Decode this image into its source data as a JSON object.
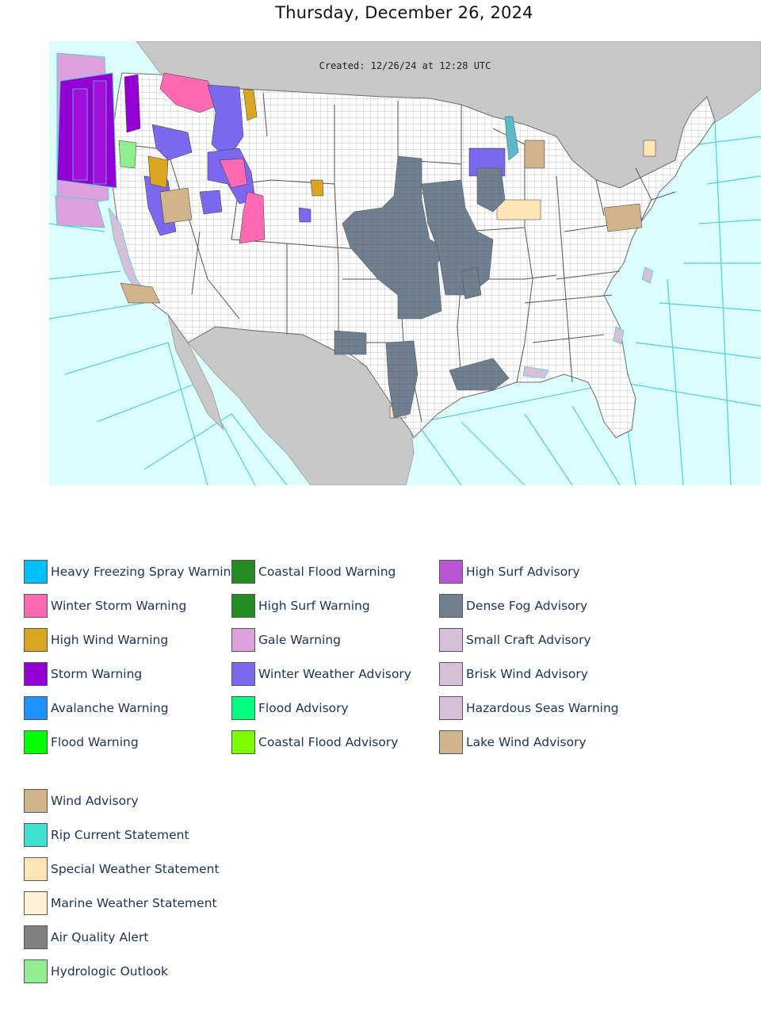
{
  "page": {
    "title": "Thursday, December 26, 2024"
  },
  "map": {
    "created_stamp": "Created: 12/26/24 at 12:28 UTC",
    "colors": {
      "ocean": "#dbfdfd",
      "marine_zone_line": "#4fd0d6",
      "land_outside": "#c8c8c8",
      "county_fill": "#ffffff",
      "county_line": "#b9b9b9"
    }
  },
  "legend": {
    "columns": [
      [
        {
          "label": "Heavy Freezing Spray Warning",
          "color": "#00bfff"
        },
        {
          "label": "Winter Storm Warning",
          "color": "#ff69b4"
        },
        {
          "label": "High Wind Warning",
          "color": "#daa520"
        },
        {
          "label": "Storm Warning",
          "color": "#9400d3"
        },
        {
          "label": "Avalanche Warning",
          "color": "#1e90ff"
        },
        {
          "label": "Flood Warning",
          "color": "#00ff00"
        }
      ],
      [
        {
          "label": "Coastal Flood Warning",
          "color": "#228b22"
        },
        {
          "label": "High Surf Warning",
          "color": "#228b22"
        },
        {
          "label": "Gale Warning",
          "color": "#dda0dd"
        },
        {
          "label": "Winter Weather Advisory",
          "color": "#7b68ee"
        },
        {
          "label": "Flood Advisory",
          "color": "#00ff7f"
        },
        {
          "label": "Coastal Flood Advisory",
          "color": "#7cfc00"
        }
      ],
      [
        {
          "label": "High Surf Advisory",
          "color": "#ba55d3"
        },
        {
          "label": "Dense Fog Advisory",
          "color": "#708090"
        },
        {
          "label": "Small Craft Advisory",
          "color": "#d8bfd8"
        },
        {
          "label": "Brisk Wind Advisory",
          "color": "#d8bfd8"
        },
        {
          "label": "Hazardous Seas Warning",
          "color": "#d8bfd8"
        },
        {
          "label": "Lake Wind Advisory",
          "color": "#d2b48c"
        }
      ],
      [
        {
          "label": "Wind Advisory",
          "color": "#d2b48c"
        },
        {
          "label": "Rip Current Statement",
          "color": "#40e0d0"
        },
        {
          "label": "Special Weather Statement",
          "color": "#ffe4b5"
        },
        {
          "label": "Marine Weather Statement",
          "color": "#ffefd5"
        },
        {
          "label": "Air Quality Alert",
          "color": "#808080"
        },
        {
          "label": "Hydrologic Outlook",
          "color": "#90ee90"
        }
      ]
    ]
  }
}
